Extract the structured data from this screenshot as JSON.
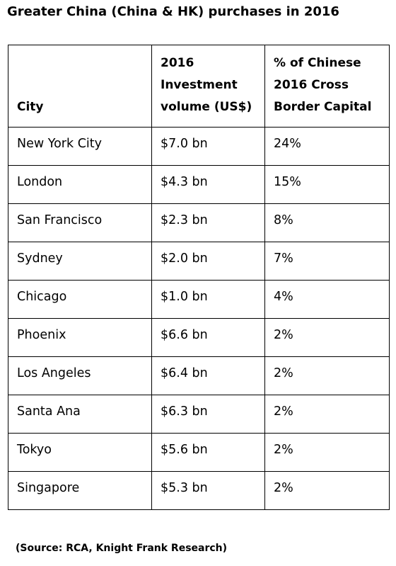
{
  "chart_data": {
    "type": "table",
    "title": "Greater China (China & HK) purchases in 2016",
    "columns": [
      "City",
      "2016 Investment volume (US$)",
      "% of Chinese 2016 Cross Border Capital"
    ],
    "column_lines": [
      [
        "City"
      ],
      [
        "2016",
        "Investment",
        "volume (US$)"
      ],
      [
        "% of Chinese",
        "2016 Cross",
        "Border Capital"
      ]
    ],
    "rows": [
      [
        "New York City",
        "$7.0 bn",
        "24%"
      ],
      [
        "London",
        "$4.3 bn",
        "15%"
      ],
      [
        "San Francisco",
        "$2.3 bn",
        "8%"
      ],
      [
        "Sydney",
        "$2.0 bn",
        "7%"
      ],
      [
        "Chicago",
        "$1.0 bn",
        "4%"
      ],
      [
        "Phoenix",
        "$6.6 bn",
        "2%"
      ],
      [
        "Los Angeles",
        "$6.4 bn",
        "2%"
      ],
      [
        "Santa Ana",
        "$6.3 bn",
        "2%"
      ],
      [
        "Tokyo",
        "$5.6 bn",
        "2%"
      ],
      [
        "Singapore",
        "$5.3 bn",
        "2%"
      ]
    ],
    "source": "(Source: RCA, Knight Frank Research)"
  }
}
